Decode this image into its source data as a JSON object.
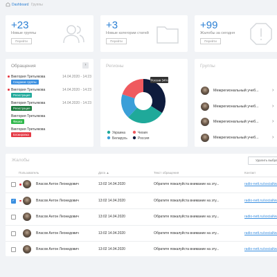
{
  "breadcrumb": {
    "home": "Dashboard",
    "separator": "/",
    "current": "Группы"
  },
  "stats": [
    {
      "number": "+23",
      "label": "Новые группы",
      "button": "Перейти"
    },
    {
      "number": "+3",
      "label": "Новые категории статей",
      "button": "Перейти"
    },
    {
      "number": "+99",
      "label": "Жалобы за сегодня",
      "button": "Перейти"
    }
  ],
  "requests": {
    "title": "Обращения",
    "items": [
      {
        "name": "Виктория Третьякова",
        "date": "14.04.2020 - 14:23",
        "badge": "Создание группы"
      },
      {
        "name": "Виктория Третьякова",
        "date": "14.04.2020 - 14:23",
        "badge": "Регистрация"
      },
      {
        "name": "Виктория Третьякова",
        "date": "14.04.2020 - 14:23",
        "badge": "Регистрация"
      },
      {
        "name": "Виктория Третьякова",
        "badge": "Фишка"
      },
      {
        "name": "Виктория Третьякова",
        "badge": "Блокировка"
      }
    ]
  },
  "regions": {
    "title": "Регионы",
    "tooltip": "Россия 34%",
    "segments": [
      {
        "name": "Украина",
        "color": "#1fa99a",
        "value": 28
      },
      {
        "name": "Чехия",
        "color": "#ef5a5f",
        "value": 20
      },
      {
        "name": "Беларусь",
        "color": "#3a9fd8",
        "value": 18
      },
      {
        "name": "Россия",
        "color": "#0e1b3c",
        "value": 34
      }
    ]
  },
  "groups": {
    "title": "Группы",
    "items": [
      "Межрегиональный учеб...",
      "Межрегиональный учеб...",
      "Межрегиональный учеб...",
      "Межрегиональный учеб..."
    ]
  },
  "complaints": {
    "title": "Жалобы",
    "button": "Удалить выбран",
    "columns": [
      "Пользователь",
      "Дата ▲",
      "Текст обращения",
      "Контакт"
    ],
    "rows": [
      [
        "Власов Антон Леонидович",
        "13:02 14.04.2020",
        "Обратите пожалуйста внимание на эту...",
        "radio-nett.ru/social/wav"
      ],
      [
        "Власов Антон Леонидович",
        "13:02 14.04.2020",
        "Обратите пожалуйста внимание на эту...",
        "radio-nett.ru/social/wav"
      ],
      [
        "Власов Антон Леонидович",
        "13:02 14.04.2020",
        "Обратите пожалуйста внимание на эту...",
        "radio-nett.ru/social/wav"
      ],
      [
        "Власов Антон Леонидович",
        "13:02 14.04.2020",
        "Обратите пожалуйста внимание на эту...",
        "radio-nett.ru/social/wav"
      ],
      [
        "Власов Антон Леонидович",
        "13:02 14.04.2020",
        "Обратите пожалуйста внимание на эту...",
        "radio-nett.ru/social/wav"
      ]
    ]
  }
}
